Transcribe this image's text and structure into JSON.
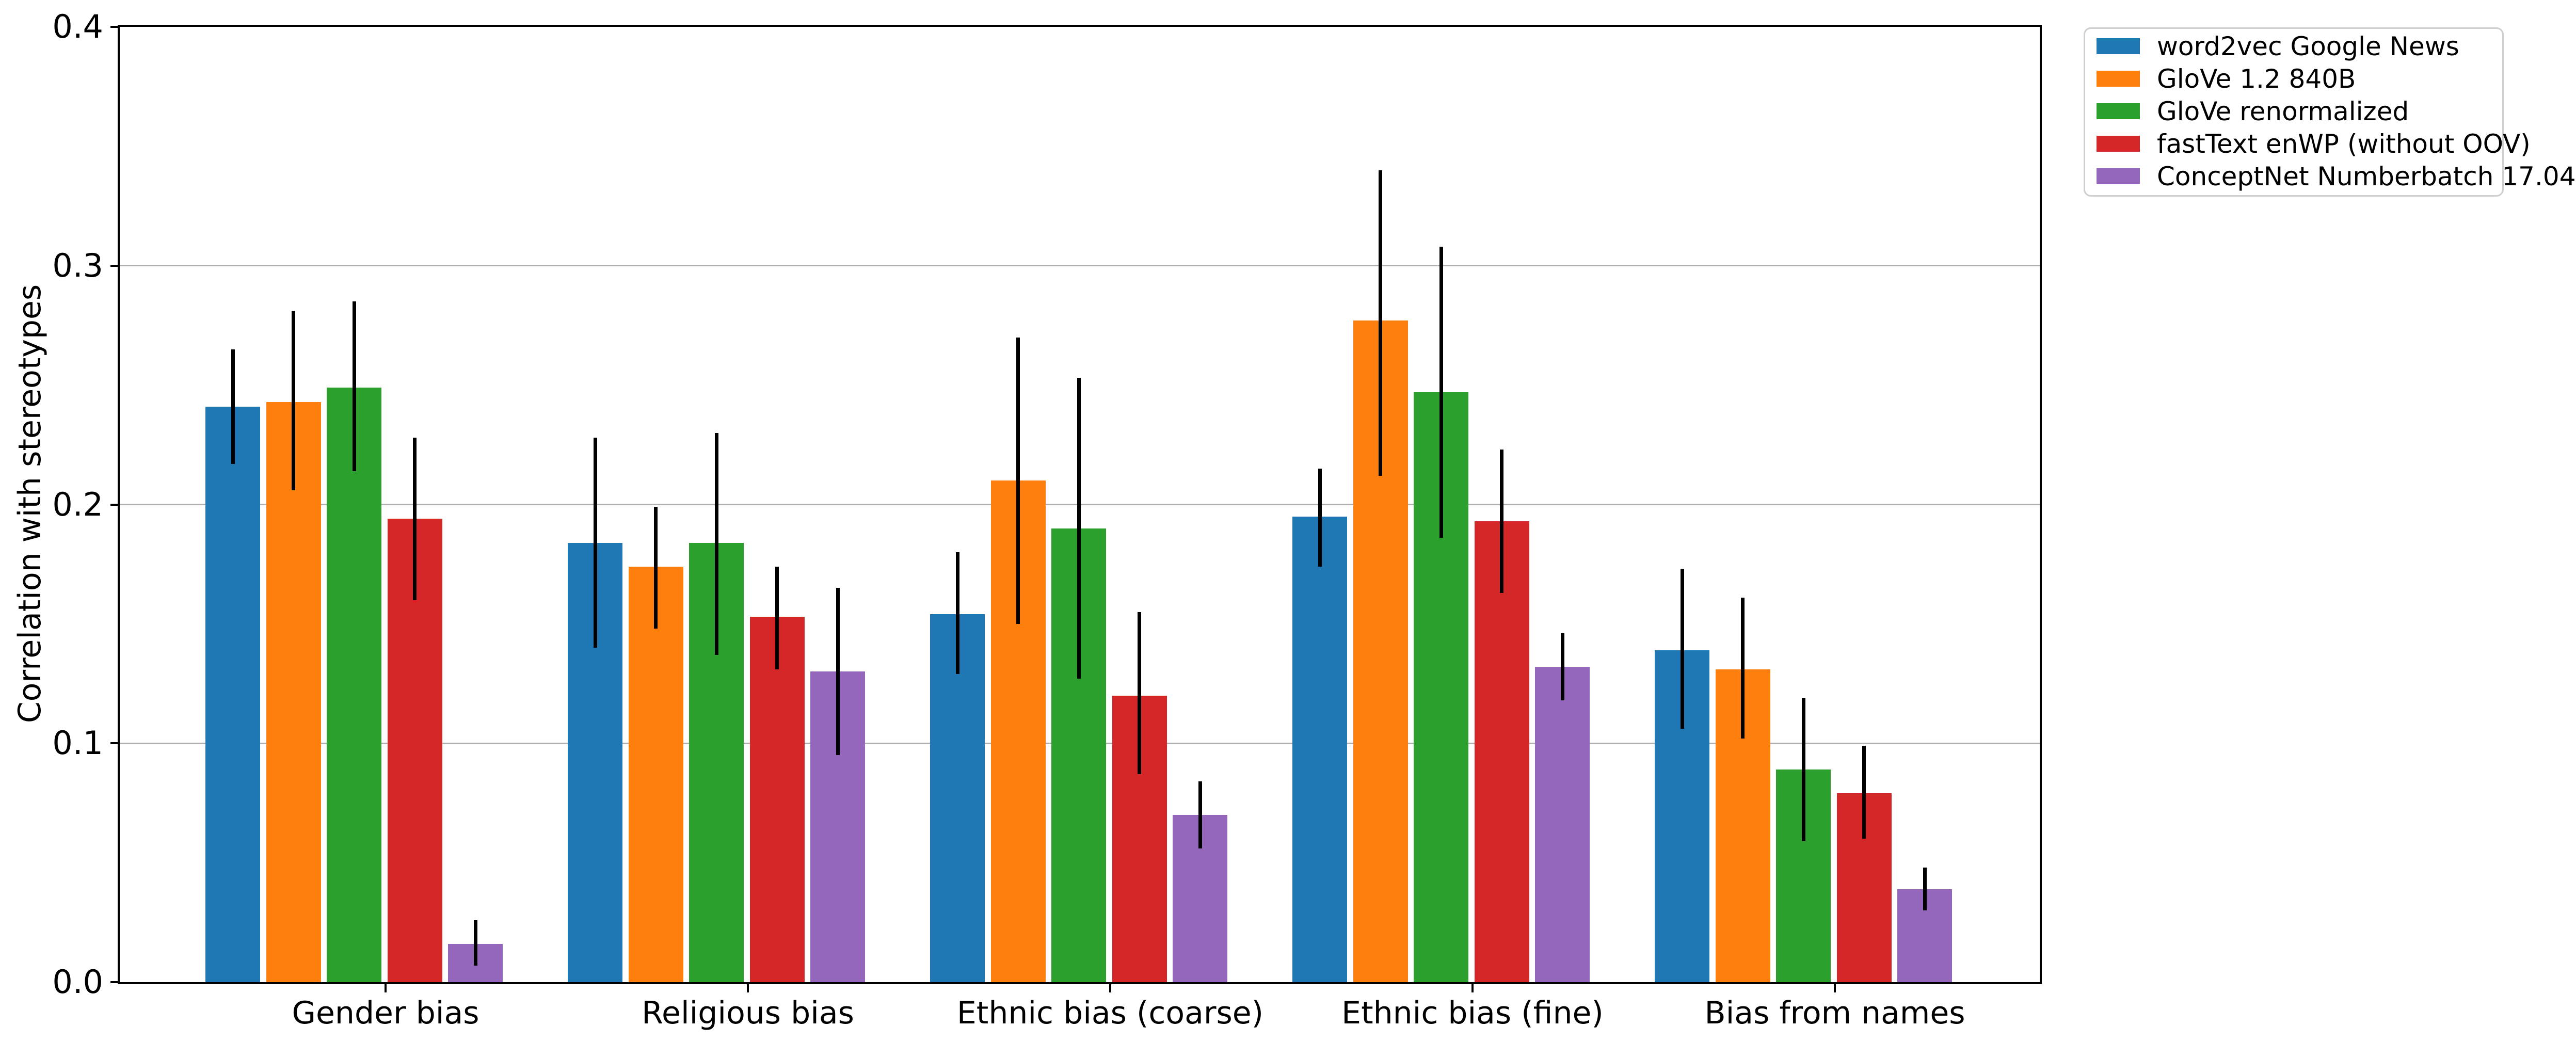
{
  "y_axis": {
    "label": "Correlation with stereotypes",
    "tick_labels": [
      "0.0",
      "0.1",
      "0.2",
      "0.3",
      "0.4"
    ]
  },
  "chart_data": {
    "type": "bar",
    "title": "",
    "xlabel": "",
    "ylabel": "Correlation with stereotypes",
    "ylim": [
      0,
      0.4
    ],
    "yticks": [
      0,
      0.1,
      0.2,
      0.3,
      0.4
    ],
    "grid": true,
    "error_bars": true,
    "legend_position": "upper right, outside axes",
    "categories": [
      "Gender bias",
      "Religious bias",
      "Ethnic bias (coarse)",
      "Ethnic bias (fine)",
      "Bias from names"
    ],
    "series": [
      {
        "name": "word2vec Google News",
        "color": "#1f77b4",
        "values": [
          0.241,
          0.184,
          0.154,
          0.195,
          0.139
        ],
        "err_min": [
          0.217,
          0.14,
          0.129,
          0.174,
          0.106
        ],
        "err_max": [
          0.265,
          0.228,
          0.18,
          0.215,
          0.173
        ]
      },
      {
        "name": "GloVe 1.2 840B",
        "color": "#ff7f0e",
        "values": [
          0.243,
          0.174,
          0.21,
          0.277,
          0.131
        ],
        "err_min": [
          0.206,
          0.148,
          0.15,
          0.212,
          0.102
        ],
        "err_max": [
          0.281,
          0.199,
          0.27,
          0.34,
          0.161
        ]
      },
      {
        "name": "GloVe renormalized",
        "color": "#2ca02c",
        "values": [
          0.249,
          0.184,
          0.19,
          0.247,
          0.089
        ],
        "err_min": [
          0.214,
          0.137,
          0.127,
          0.186,
          0.059
        ],
        "err_max": [
          0.285,
          0.23,
          0.253,
          0.308,
          0.119
        ]
      },
      {
        "name": "fastText enWP (without OOV)",
        "color": "#d62728",
        "values": [
          0.194,
          0.153,
          0.12,
          0.193,
          0.079
        ],
        "err_min": [
          0.16,
          0.131,
          0.087,
          0.163,
          0.06
        ],
        "err_max": [
          0.228,
          0.174,
          0.155,
          0.223,
          0.099
        ]
      },
      {
        "name": "ConceptNet Numberbatch 17.04",
        "color": "#9467bd",
        "values": [
          0.016,
          0.13,
          0.07,
          0.132,
          0.039
        ],
        "err_min": [
          0.007,
          0.095,
          0.056,
          0.118,
          0.03
        ],
        "err_max": [
          0.026,
          0.165,
          0.084,
          0.146,
          0.048
        ]
      }
    ],
    "colors": {
      "gridline": "#b0b0b0",
      "axis": "#000000",
      "error_bar": "#000000",
      "legend_border": "#cfcfcf",
      "background": "#ffffff"
    }
  }
}
